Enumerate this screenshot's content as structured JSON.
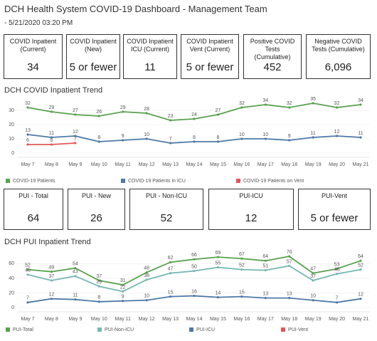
{
  "title": "DCH Health System COVID-19 Dashboard - Management Team",
  "subtitle": "- 5/21/2020 03:20 PM",
  "kpis_top": [
    {
      "label": "COVID Inpatient (Current)",
      "value": "34"
    },
    {
      "label": "COVID Inpatient (New)",
      "value": "5 or fewer"
    },
    {
      "label": "COVID Inpatient ICU (Current)",
      "value": "11"
    },
    {
      "label": "COVID Inpatient Vent (Current)",
      "value": "5 or fewer"
    },
    {
      "label": "Positive COVID Tests (Cumulative)",
      "value": "452"
    },
    {
      "label": "Negative COVID Tests (Cumulative)",
      "value": "6,096"
    }
  ],
  "kpis_bottom": [
    {
      "label": "PUI - Total",
      "value": "64"
    },
    {
      "label": "PUI - New",
      "value": "26"
    },
    {
      "label": "PUI - Non-ICU",
      "value": "52"
    },
    {
      "label": "PUI-ICU",
      "value": "12"
    },
    {
      "label": "PUI-Vent",
      "value": "5 or fewer"
    }
  ],
  "chart_data": [
    {
      "type": "line",
      "title": "DCH COVID Inpatient Trend",
      "categories": [
        "May 7",
        "May 8",
        "May 9",
        "May 10",
        "May 11",
        "May 12",
        "May 13",
        "May 14",
        "May 15",
        "May 16",
        "May 17",
        "May 18",
        "May 19",
        "May 20",
        "May 21"
      ],
      "ylim": [
        0,
        36
      ],
      "yticks": [
        0,
        10,
        20,
        30
      ],
      "grid": true,
      "series": [
        {
          "name": "COVID-19 Patients",
          "color": "#59a14f",
          "values": [
            32,
            29,
            27,
            26,
            29,
            28,
            23,
            24,
            27,
            32,
            34,
            32,
            35,
            32,
            34
          ]
        },
        {
          "name": "COVID-19 Patients in ICU",
          "color": "#4e79a7",
          "values": [
            13,
            11,
            12,
            8,
            9,
            10,
            7,
            8,
            8,
            10,
            10,
            9,
            11,
            12,
            11
          ]
        },
        {
          "name": "COVID-19 Patients on Vent",
          "color": "#e15759",
          "values": [
            6,
            6,
            7,
            null,
            null,
            null,
            null,
            null,
            null,
            null,
            null,
            null,
            null,
            null,
            null
          ]
        }
      ]
    },
    {
      "type": "line",
      "title": "DCH PUI Inpatient Trend",
      "categories": [
        "May 7",
        "May 8",
        "May 9",
        "May 10",
        "May 11",
        "May 12",
        "May 13",
        "May 14",
        "May 15",
        "May 16",
        "May 17",
        "May 18",
        "May 19",
        "May 20",
        "May 21"
      ],
      "ylim": [
        0,
        75
      ],
      "yticks": [
        0,
        20,
        40,
        60
      ],
      "grid": true,
      "series": [
        {
          "name": "PUI-Total",
          "color": "#59a14f",
          "values": [
            52,
            49,
            54,
            37,
            31,
            48,
            62,
            66,
            69,
            67,
            64,
            70,
            47,
            53,
            64
          ]
        },
        {
          "name": "PUI-Non-ICU",
          "color": "#76b7b2",
          "values": [
            45,
            37,
            43,
            29,
            22,
            38,
            47,
            50,
            55,
            52,
            51,
            57,
            37,
            46,
            52
          ]
        },
        {
          "name": "PUI-ICU",
          "color": "#4e79a7",
          "values": [
            7,
            12,
            11,
            8,
            9,
            10,
            15,
            16,
            14,
            15,
            13,
            13,
            10,
            7,
            12
          ]
        },
        {
          "name": "PUI-Vent",
          "color": "#e15759",
          "values": [
            null,
            null,
            null,
            null,
            null,
            null,
            null,
            null,
            null,
            null,
            null,
            null,
            null,
            null,
            null
          ]
        }
      ]
    }
  ]
}
